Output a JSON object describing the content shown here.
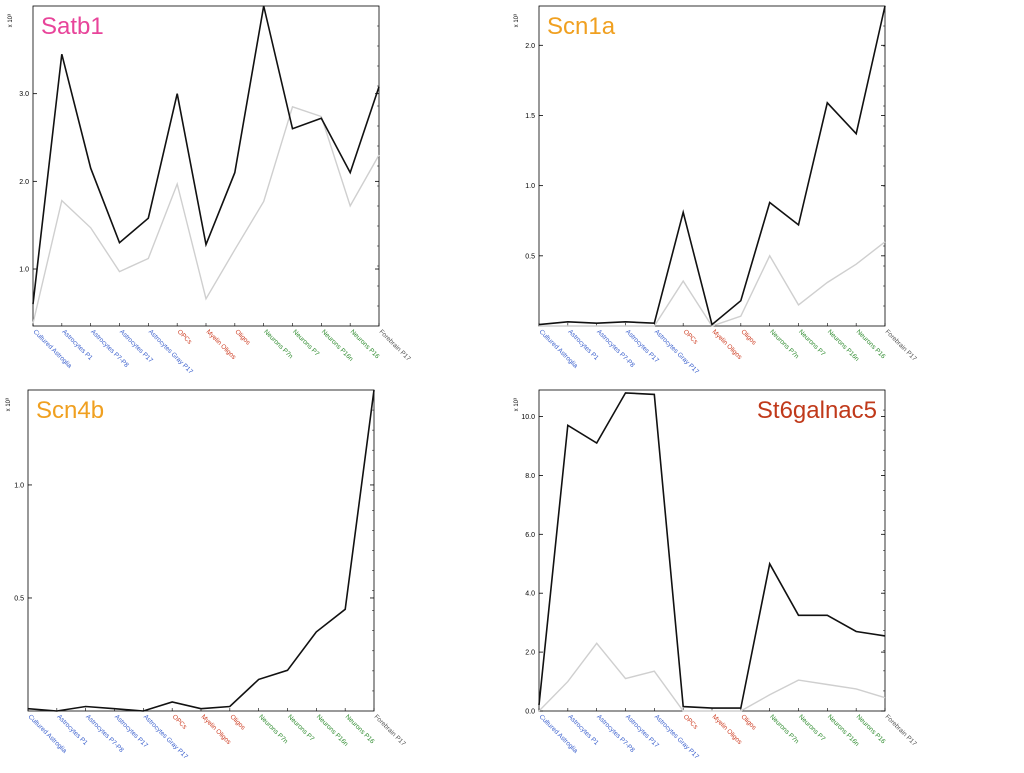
{
  "colors": {
    "line_dark": "#111111",
    "line_light": "#cfcfcf",
    "astro": "#3a5fcd",
    "oligo": "#cd3a1f",
    "neuron": "#2e8b2e",
    "other": "#555555"
  },
  "chart_data": [
    {
      "type": "line",
      "title": "Satb1",
      "title_color": "#e8449a",
      "multiplier_label": "x 10³",
      "categories": [
        "Cultured Astroglia",
        "Astrocytes P1",
        "Astrocytes P7-P8",
        "Astrocytes P17",
        "Astrocytes Gray P17",
        "OPCs",
        "Myelin Oligos",
        "Oligos",
        "Neurons P7n",
        "Neurons P7",
        "Neurons P16n",
        "Neurons P16",
        "Forebrain P17"
      ],
      "category_groups": [
        "astro",
        "astro",
        "astro",
        "astro",
        "astro",
        "oligo",
        "oligo",
        "oligo",
        "neuron",
        "neuron",
        "neuron",
        "neuron",
        "other"
      ],
      "yticks": [
        1.0,
        2.0,
        3.0
      ],
      "ylim": [
        0.35,
        4.0
      ],
      "series": [
        {
          "style": "dark",
          "values": [
            0.6,
            3.45,
            2.15,
            1.3,
            1.58,
            3.0,
            1.28,
            2.1,
            4.0,
            2.6,
            2.72,
            2.1,
            3.08
          ]
        },
        {
          "style": "light",
          "values": [
            0.38,
            1.78,
            1.47,
            0.97,
            1.12,
            1.97,
            0.66,
            1.22,
            1.77,
            2.85,
            2.74,
            1.72,
            2.3
          ]
        }
      ]
    },
    {
      "type": "line",
      "title": "Scn1a",
      "title_color": "#f0a020",
      "multiplier_label": "x 10³",
      "categories": [
        "Cultured Astroglia",
        "Astrocytes P1",
        "Astrocytes P7-P8",
        "Astrocytes P17",
        "Astrocytes Gray P17",
        "OPCs",
        "Myelin Oligos",
        "Oligos",
        "Neurons P7n",
        "Neurons P7",
        "Neurons P16n",
        "Neurons P16",
        "Forebrain P17"
      ],
      "category_groups": [
        "astro",
        "astro",
        "astro",
        "astro",
        "astro",
        "oligo",
        "oligo",
        "oligo",
        "neuron",
        "neuron",
        "neuron",
        "neuron",
        "other"
      ],
      "yticks": [
        0.5,
        1.0,
        1.5,
        2.0
      ],
      "ylim": [
        0.0,
        2.28
      ],
      "series": [
        {
          "style": "dark",
          "values": [
            0.01,
            0.03,
            0.02,
            0.03,
            0.02,
            0.81,
            0.01,
            0.18,
            0.88,
            0.72,
            1.59,
            1.37,
            2.28
          ]
        },
        {
          "style": "light",
          "values": [
            0.0,
            0.0,
            0.0,
            0.0,
            0.0,
            0.32,
            0.0,
            0.07,
            0.5,
            0.15,
            0.31,
            0.44,
            0.6
          ]
        }
      ]
    },
    {
      "type": "line",
      "title": "Scn4b",
      "title_color": "#f0a020",
      "multiplier_label": "x 10³",
      "categories": [
        "Cultured Astroglia",
        "Astrocytes P1",
        "Astrocytes P7-P8",
        "Astrocytes P17",
        "Astrocytes Gray P17",
        "OPCs",
        "Myelin Oligos",
        "Oligos",
        "Neurons P7n",
        "Neurons P7",
        "Neurons P16n",
        "Neurons P16",
        "Forebrain P17"
      ],
      "category_groups": [
        "astro",
        "astro",
        "astro",
        "astro",
        "astro",
        "oligo",
        "oligo",
        "oligo",
        "neuron",
        "neuron",
        "neuron",
        "neuron",
        "other"
      ],
      "yticks": [
        0.5,
        1.0
      ],
      "ylim": [
        0.0,
        1.42
      ],
      "series": [
        {
          "style": "dark",
          "values": [
            0.01,
            0.0,
            0.02,
            0.01,
            0.0,
            0.04,
            0.01,
            0.02,
            0.14,
            0.18,
            0.35,
            0.45,
            1.42
          ]
        }
      ]
    },
    {
      "type": "line",
      "title": "St6galnac5",
      "title_color": "#c0391a",
      "multiplier_label": "x 10³",
      "categories": [
        "Cultured Astroglia",
        "Astrocytes P1",
        "Astrocytes P7-P8",
        "Astrocytes P17",
        "Astrocytes Gray P17",
        "OPCs",
        "Myelin Oligos",
        "Oligos",
        "Neurons P7n",
        "Neurons P7",
        "Neurons P16n",
        "Neurons P16",
        "Forebrain P17"
      ],
      "category_groups": [
        "astro",
        "astro",
        "astro",
        "astro",
        "astro",
        "oligo",
        "oligo",
        "oligo",
        "neuron",
        "neuron",
        "neuron",
        "neuron",
        "other"
      ],
      "yticks": [
        0.0,
        2.0,
        4.0,
        6.0,
        8.0,
        10.0
      ],
      "ylim": [
        0.0,
        10.9
      ],
      "series": [
        {
          "style": "dark",
          "values": [
            0.2,
            9.7,
            9.1,
            10.8,
            10.75,
            0.15,
            0.1,
            0.1,
            5.0,
            3.25,
            3.25,
            2.7,
            2.55
          ]
        },
        {
          "style": "light",
          "values": [
            0.0,
            1.0,
            2.3,
            1.1,
            1.35,
            0.0,
            0.0,
            0.0,
            0.55,
            1.05,
            0.9,
            0.75,
            0.45
          ]
        }
      ]
    }
  ]
}
